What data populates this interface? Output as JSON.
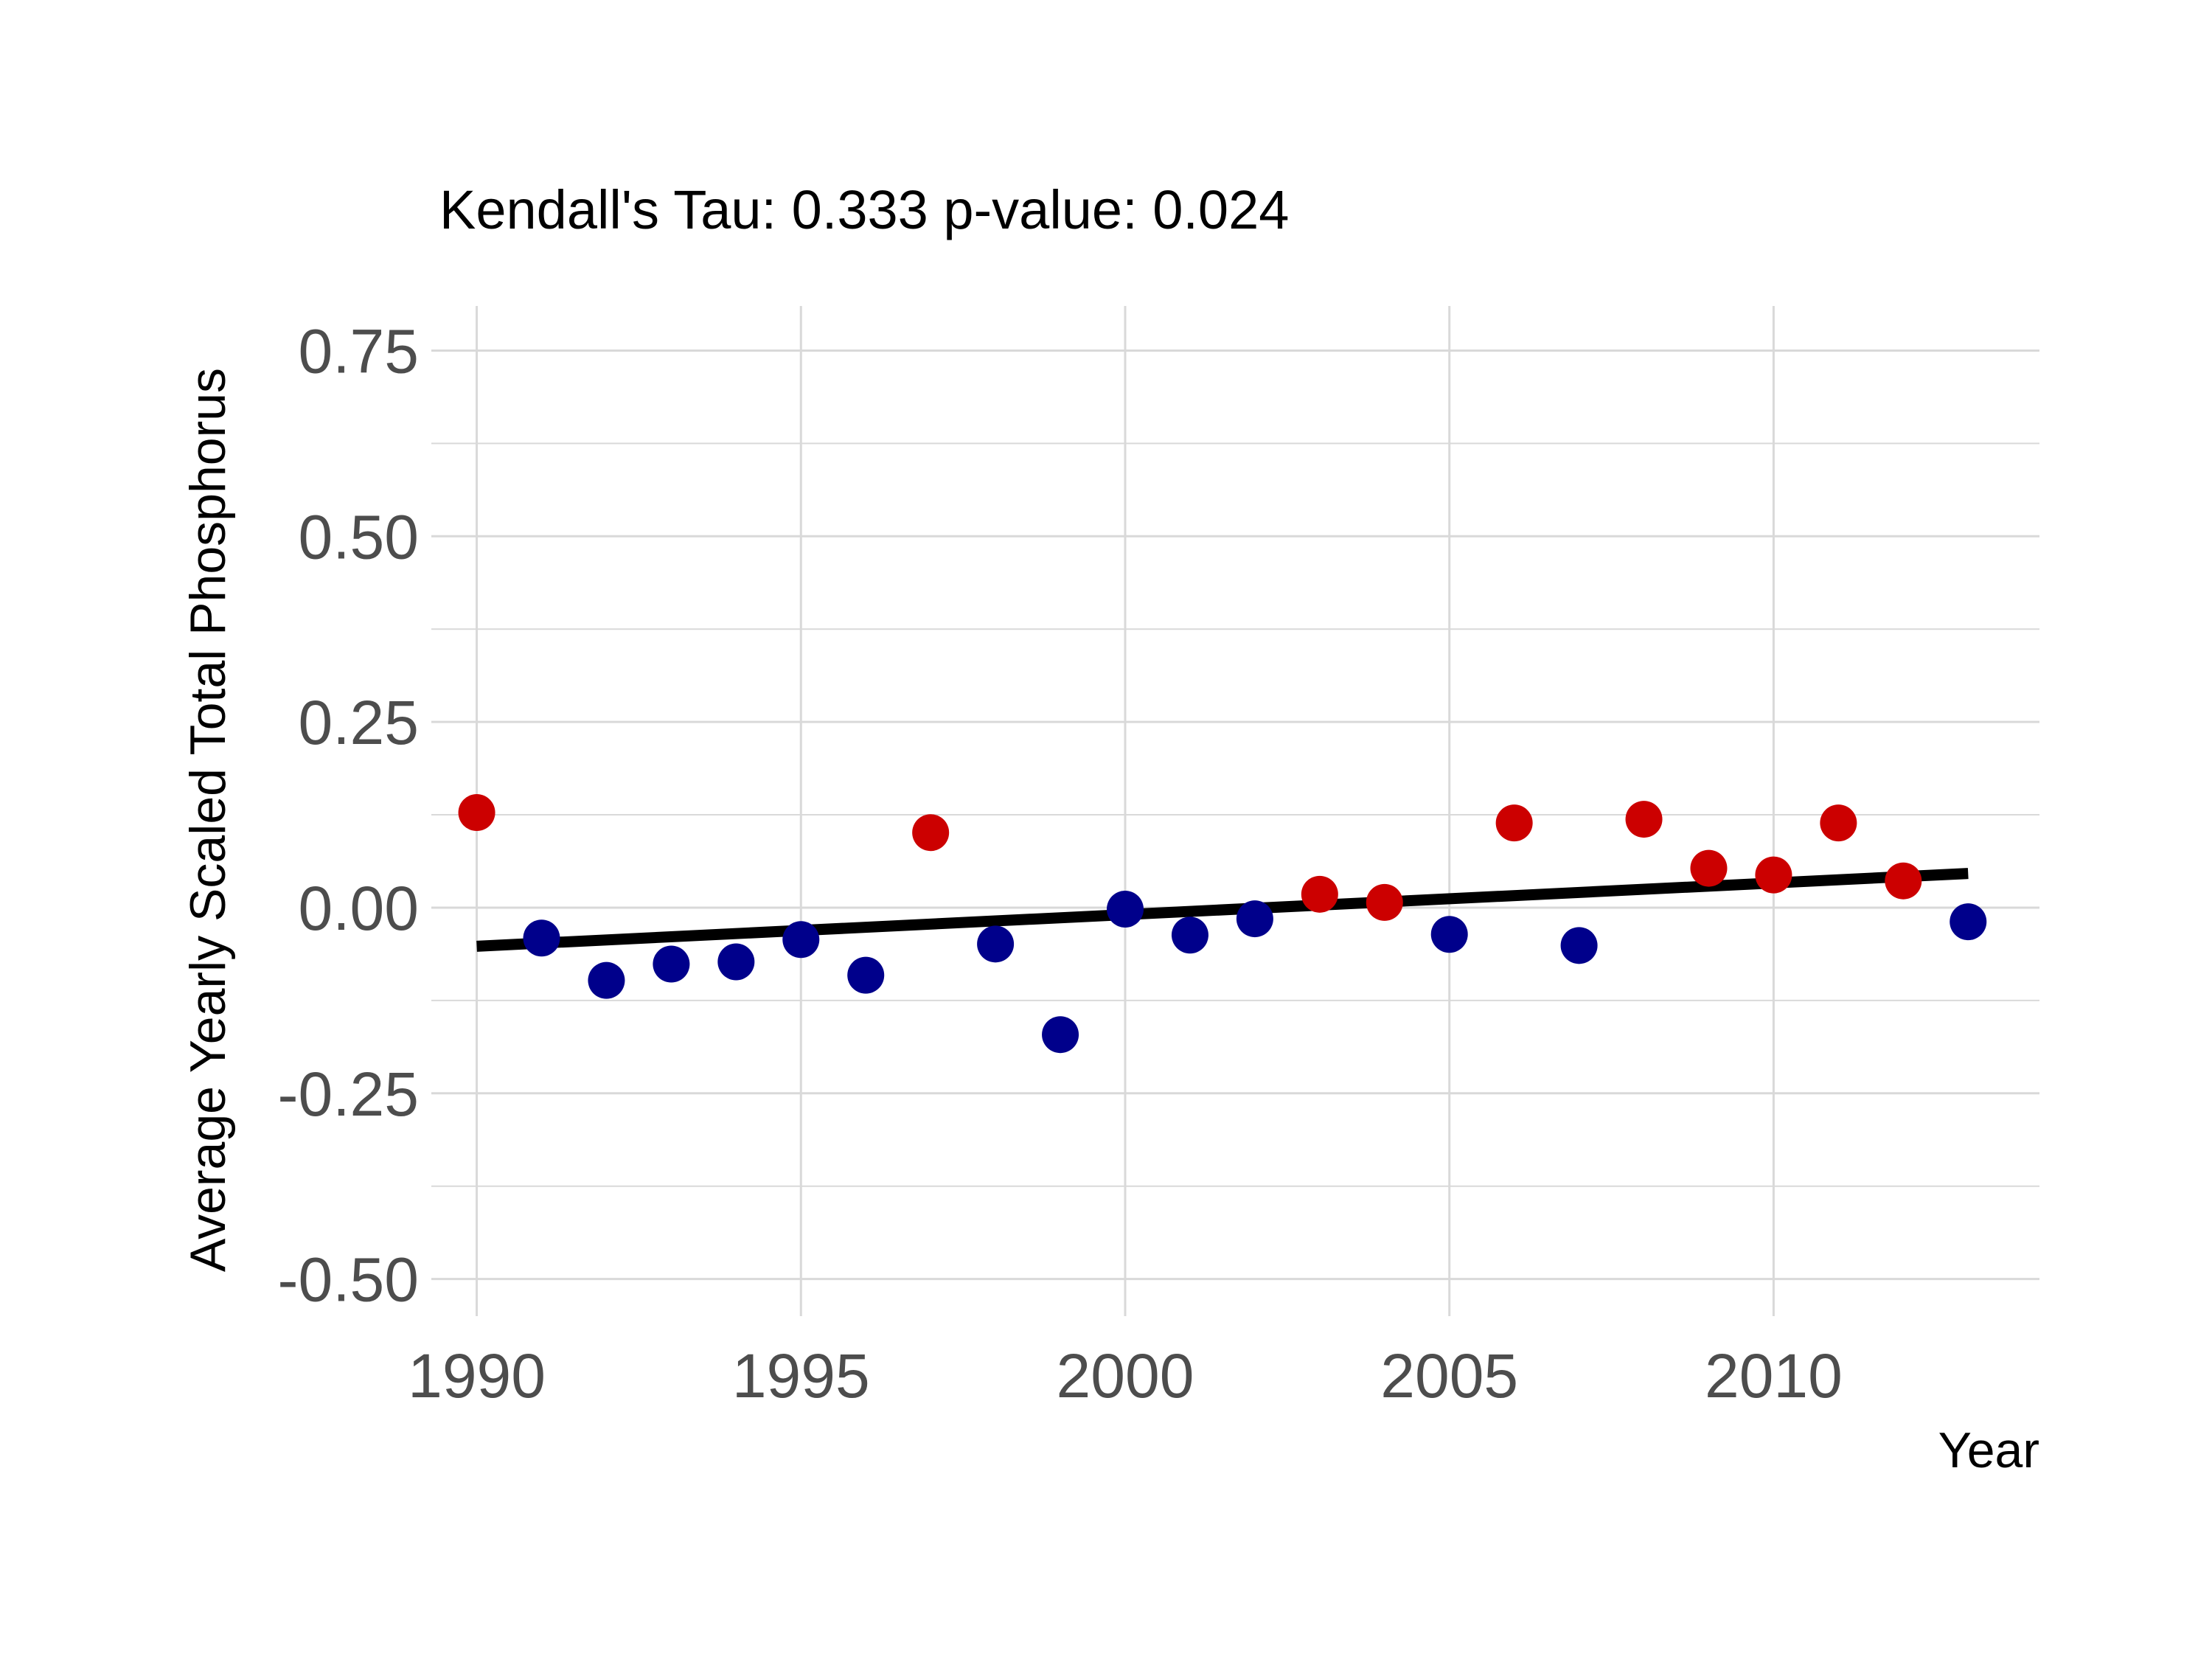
{
  "chart_data": {
    "type": "scatter",
    "title": "Kendall's Tau: 0.333 p-value: 0.024",
    "xlabel": "Year",
    "ylabel": "Average Yearly Scaled Total Phosphorus",
    "xlim": [
      1989.3,
      2014.1
    ],
    "ylim": [
      -0.55,
      0.81
    ],
    "x_ticks": [
      1990,
      1995,
      2000,
      2005,
      2010
    ],
    "x_tick_labels": [
      "1990",
      "1995",
      "2000",
      "2005",
      "2010"
    ],
    "y_ticks": [
      -0.5,
      -0.25,
      0,
      0.25,
      0.5,
      0.75
    ],
    "y_tick_labels": [
      "-0.50",
      "-0.25",
      "0.00",
      "0.25",
      "0.50",
      "0.75"
    ],
    "grid": true,
    "legend": "none",
    "colors": {
      "above_trend": "#cc0000",
      "below_trend": "#00008b",
      "trend_line": "#000000",
      "grid": "#d9d9d9"
    },
    "series": [
      {
        "x": [
          1990,
          1991,
          1992,
          1993,
          1994,
          1995,
          1996,
          1997,
          1998,
          1999,
          2000,
          2001,
          2002,
          2003,
          2004,
          2005,
          2006,
          2007,
          2008,
          2009,
          2010,
          2011,
          2012,
          2013
        ],
        "y": [
          0.128,
          -0.041,
          -0.098,
          -0.076,
          -0.073,
          -0.043,
          -0.091,
          0.101,
          -0.049,
          -0.171,
          -0.002,
          -0.037,
          -0.015,
          0.018,
          0.007,
          -0.036,
          0.114,
          -0.051,
          0.119,
          0.053,
          0.044,
          0.114,
          0.036,
          -0.019
        ],
        "point_colors": [
          "above_trend",
          "below_trend",
          "below_trend",
          "below_trend",
          "below_trend",
          "below_trend",
          "below_trend",
          "above_trend",
          "below_trend",
          "below_trend",
          "below_trend",
          "below_trend",
          "below_trend",
          "above_trend",
          "above_trend",
          "below_trend",
          "above_trend",
          "below_trend",
          "above_trend",
          "above_trend",
          "above_trend",
          "above_trend",
          "above_trend",
          "below_trend"
        ]
      }
    ],
    "trend_line": {
      "x": [
        1990,
        2013
      ],
      "y": [
        -0.052,
        0.046
      ]
    }
  }
}
